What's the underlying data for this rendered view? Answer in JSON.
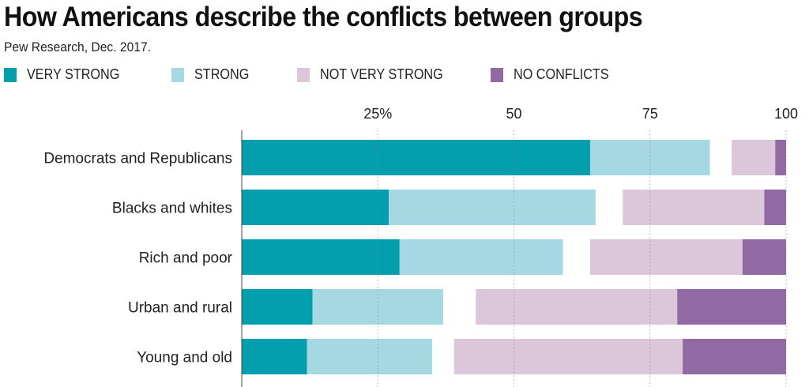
{
  "title": "How Americans describe the conflicts between groups",
  "subtitle": "Pew Research, Dec. 2017.",
  "colors": {
    "very_strong": "#049fae",
    "strong": "#a6d8e3",
    "not_very_strong": "#dcc6da",
    "no_conflicts": "#9169a3"
  },
  "chart_data": {
    "type": "bar",
    "orientation": "horizontal",
    "stacked": true,
    "title": "How Americans describe the conflicts between groups",
    "subtitle": "Pew Research, Dec. 2017.",
    "xlabel": "",
    "ylabel": "",
    "xlim": [
      0,
      100
    ],
    "xticks": [
      25,
      50,
      75,
      100
    ],
    "xtick_labels": [
      "25%",
      "50",
      "75",
      "100"
    ],
    "grid": "vertical dotted",
    "legend_position": "top-left",
    "categories": [
      "Democrats and Republicans",
      "Blacks and whites",
      "Rich and poor",
      "Urban and rural",
      "Young and old"
    ],
    "series": [
      {
        "name": "VERY STRONG",
        "key": "very_strong",
        "values": [
          64,
          27,
          29,
          13,
          12
        ]
      },
      {
        "name": "STRONG",
        "key": "strong",
        "values": [
          22,
          38,
          30,
          24,
          23
        ]
      },
      {
        "name": "NOT VERY STRONG",
        "key": "not_very_strong",
        "values": [
          8,
          26,
          28,
          37,
          42
        ]
      },
      {
        "name": "NO CONFLICTS",
        "key": "no_conflicts",
        "values": [
          2,
          4,
          8,
          20,
          19
        ]
      }
    ],
    "not_very_strong_start": [
      90,
      70,
      64,
      43,
      39
    ]
  }
}
